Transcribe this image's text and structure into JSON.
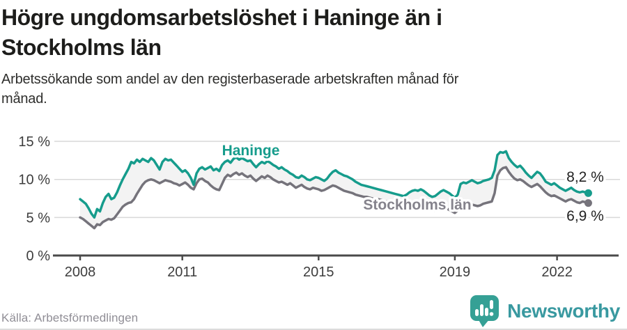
{
  "header": {
    "title_lines": [
      "Högre ungdomsarbetslöshet i Haninge än i",
      "Stockholms län"
    ],
    "subtitle_lines": [
      "Arbetssökande som andel av den registerbaserade arbetskraften månad för",
      "månad."
    ]
  },
  "chart_data": {
    "type": "line",
    "title": "Högre ungdomsarbetslöshet i Haninge än i Stockholms län",
    "subtitle": "Arbetssökande som andel av den registerbaserade arbetskraften månad för månad.",
    "x_unit": "month",
    "x_start": "2008-01",
    "x_end": "2022-12",
    "x_ticks": [
      {
        "year": 2008,
        "label": "2008"
      },
      {
        "year": 2011,
        "label": "2011"
      },
      {
        "year": 2015,
        "label": "2015"
      },
      {
        "year": 2019,
        "label": "2019"
      },
      {
        "year": 2022,
        "label": "2022"
      }
    ],
    "y_ticks": [
      {
        "value": 15,
        "label": "15 %"
      },
      {
        "value": 10,
        "label": "10 %"
      },
      {
        "value": 5,
        "label": "5 %"
      },
      {
        "value": 0,
        "label": "0 %"
      }
    ],
    "ylim": [
      0,
      15
    ],
    "grid": true,
    "band_fill_between_series": true,
    "series": [
      {
        "name": "Haninge",
        "inline_label": "Haninge",
        "end_label": "8,2 %",
        "end_value": 8.2,
        "color": "#169c8c",
        "label_color": "#169c8c",
        "values": [
          7.4,
          7.1,
          6.8,
          6.2,
          5.5,
          5.0,
          6.1,
          5.8,
          6.9,
          7.7,
          8.1,
          7.4,
          7.6,
          8.3,
          9.2,
          10.0,
          10.7,
          11.4,
          12.3,
          12.1,
          12.6,
          12.3,
          12.7,
          12.5,
          12.3,
          12.8,
          12.5,
          11.9,
          11.3,
          12.3,
          12.7,
          12.5,
          12.6,
          12.2,
          11.8,
          11.4,
          11.0,
          11.2,
          10.8,
          10.2,
          9.3,
          10.8,
          11.4,
          11.6,
          11.3,
          11.5,
          11.7,
          11.2,
          11.4,
          11.1,
          11.9,
          12.3,
          12.5,
          12.2,
          12.7,
          12.9,
          12.6,
          12.8,
          12.6,
          12.4,
          12.5,
          12.0,
          11.6,
          12.0,
          12.3,
          12.1,
          12.4,
          12.2,
          11.9,
          11.7,
          11.4,
          11.6,
          11.3,
          11.1,
          10.8,
          10.6,
          10.3,
          10.2,
          10.5,
          10.3,
          10.0,
          9.9,
          10.1,
          10.3,
          10.2,
          10.0,
          9.8,
          10.1,
          10.6,
          11.0,
          11.2,
          10.9,
          10.7,
          10.5,
          10.4,
          10.2,
          10.0,
          9.7,
          9.5,
          9.3,
          9.2,
          9.1,
          9.0,
          8.9,
          8.8,
          8.7,
          8.6,
          8.5,
          8.4,
          8.3,
          8.2,
          8.1,
          8.0,
          7.9,
          7.8,
          8.0,
          8.3,
          8.5,
          8.6,
          8.5,
          8.7,
          8.5,
          8.2,
          7.9,
          7.7,
          7.8,
          8.1,
          8.4,
          8.6,
          8.4,
          8.2,
          7.9,
          7.6,
          8.0,
          9.4,
          9.6,
          9.5,
          9.7,
          9.9,
          9.7,
          9.5,
          9.6,
          9.8,
          9.9,
          10.0,
          10.2,
          11.2,
          13.2,
          13.6,
          13.5,
          13.7,
          12.8,
          12.3,
          11.9,
          11.6,
          11.8,
          11.4,
          10.9,
          10.5,
          10.2,
          10.6,
          11.0,
          10.8,
          10.3,
          9.7,
          9.5,
          9.3,
          9.5,
          9.2,
          8.9,
          8.7,
          8.5,
          8.7,
          8.9,
          8.6,
          8.4,
          8.3,
          8.4,
          8.3,
          8.2
        ]
      },
      {
        "name": "Stockholms län",
        "inline_label": "Stockholms län",
        "end_label": "6,9 %",
        "end_value": 6.9,
        "color": "#75737b",
        "label_color": "#85838c",
        "values": [
          5.0,
          4.8,
          4.5,
          4.2,
          3.9,
          3.6,
          4.1,
          4.0,
          4.4,
          4.6,
          4.8,
          4.7,
          4.9,
          5.4,
          5.9,
          6.4,
          6.7,
          6.9,
          7.0,
          7.4,
          8.1,
          8.7,
          9.3,
          9.7,
          9.9,
          10.0,
          9.9,
          9.7,
          9.5,
          9.7,
          9.9,
          9.8,
          9.7,
          9.5,
          9.4,
          9.2,
          9.4,
          9.6,
          9.3,
          8.9,
          8.7,
          9.5,
          10.0,
          10.1,
          9.8,
          9.6,
          9.2,
          8.9,
          8.7,
          8.6,
          9.4,
          10.2,
          10.6,
          10.4,
          10.7,
          10.9,
          10.6,
          10.8,
          10.5,
          10.3,
          10.5,
          10.1,
          9.8,
          10.1,
          10.4,
          10.2,
          10.5,
          10.3,
          10.0,
          9.8,
          9.6,
          9.7,
          9.5,
          9.3,
          9.5,
          9.2,
          8.9,
          9.1,
          9.3,
          9.0,
          8.8,
          8.7,
          8.9,
          8.8,
          8.7,
          8.5,
          8.6,
          8.8,
          9.0,
          9.2,
          9.1,
          8.9,
          8.7,
          8.5,
          8.4,
          8.3,
          8.2,
          8.0,
          7.9,
          7.8,
          7.7,
          7.7,
          7.6,
          7.5,
          7.4,
          7.4,
          7.3,
          7.2,
          7.1,
          7.0,
          6.9,
          6.8,
          6.7,
          6.6,
          6.6,
          6.8,
          6.9,
          7.0,
          6.9,
          6.8,
          6.7,
          6.5,
          6.3,
          6.2,
          6.0,
          5.9,
          6.0,
          6.2,
          6.3,
          6.2,
          6.0,
          5.8,
          5.6,
          5.9,
          6.4,
          6.5,
          6.4,
          6.6,
          6.7,
          6.6,
          6.5,
          6.6,
          6.8,
          6.9,
          7.0,
          7.1,
          8.2,
          10.5,
          11.2,
          11.5,
          11.6,
          11.0,
          10.5,
          10.1,
          9.9,
          10.0,
          9.8,
          9.5,
          9.2,
          9.0,
          9.2,
          9.4,
          9.1,
          8.7,
          8.3,
          8.0,
          7.8,
          7.9,
          7.7,
          7.5,
          7.3,
          7.1,
          7.3,
          7.4,
          7.2,
          7.0,
          6.9,
          7.1,
          7.0,
          6.9
        ]
      }
    ],
    "legend_position": "inline-labels"
  },
  "footer": {
    "source": "Källa: Arbetsförmedlingen",
    "logo_text": "Newsworthy"
  },
  "colors": {
    "accent_teal": "#169c8c",
    "line_gray": "#75737b",
    "band_fill": "#f3f3f3",
    "gridline": "#d9d9d9",
    "axis": "#4a4a4a",
    "tick_text": "#3d3d3d",
    "title_text": "#1d1d1b",
    "source_text": "#908e96",
    "logo_icon": "#35a095",
    "logo_text": "#3999a0"
  },
  "icons": {
    "logo_icon_name": "newsworthy-speech-bubble-bar-chart-icon"
  }
}
